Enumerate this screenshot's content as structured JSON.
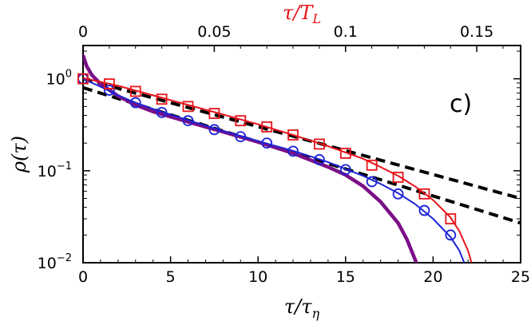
{
  "chart_data": {
    "type": "line",
    "panel_label": "c)",
    "xlabel": "τ/τη",
    "ylabel": "ρ(τ)",
    "top_xlabel": "τ/T_L",
    "xlim": [
      0,
      25
    ],
    "ylim": [
      0.01,
      2.3
    ],
    "yscale": "log",
    "top_xlim": [
      0,
      0.1667
    ],
    "x_ticks": [
      {
        "value": 0,
        "label": "0"
      },
      {
        "value": 5,
        "label": "5"
      },
      {
        "value": 10,
        "label": "10"
      },
      {
        "value": 15,
        "label": "15"
      },
      {
        "value": 20,
        "label": "20"
      },
      {
        "value": 25,
        "label": "25"
      }
    ],
    "top_x_ticks": [
      {
        "value": 0,
        "label": "0"
      },
      {
        "value": 0.05,
        "label": "0.05"
      },
      {
        "value": 0.1,
        "label": "0.1"
      },
      {
        "value": 0.15,
        "label": "0.15"
      }
    ],
    "y_ticks": [
      {
        "value": 1,
        "mantissa": "10",
        "exponent": "0"
      },
      {
        "value": 0.1,
        "mantissa": "10",
        "exponent": "−1"
      },
      {
        "value": 0.01,
        "mantissa": "10",
        "exponent": "−2"
      }
    ],
    "colors": {
      "red": "#e8141b",
      "blue": "#1c23d6",
      "purple": "#7a0f86",
      "dashed": "#000000",
      "top_axis": "#e8141b"
    },
    "series": [
      {
        "name": "red-squares",
        "kind": "markers",
        "marker": "square",
        "color": "#e8141b",
        "points": [
          [
            0.0,
            1.0
          ],
          [
            1.5,
            0.88
          ],
          [
            3.0,
            0.73
          ],
          [
            4.5,
            0.6
          ],
          [
            6.0,
            0.5
          ],
          [
            7.5,
            0.42
          ],
          [
            9.0,
            0.35
          ],
          [
            10.5,
            0.3
          ],
          [
            12.0,
            0.245
          ],
          [
            13.5,
            0.195
          ],
          [
            15.0,
            0.155
          ],
          [
            16.5,
            0.115
          ],
          [
            18.0,
            0.085
          ],
          [
            19.5,
            0.056
          ],
          [
            21.0,
            0.03
          ]
        ]
      },
      {
        "name": "red-fit",
        "kind": "line",
        "color": "#e8141b",
        "points": [
          [
            0,
            1.02
          ],
          [
            2,
            0.84
          ],
          [
            4,
            0.66
          ],
          [
            6,
            0.52
          ],
          [
            8,
            0.41
          ],
          [
            10,
            0.32
          ],
          [
            12,
            0.245
          ],
          [
            14,
            0.185
          ],
          [
            16,
            0.135
          ],
          [
            17,
            0.11
          ],
          [
            18,
            0.088
          ],
          [
            19,
            0.067
          ],
          [
            20,
            0.048
          ],
          [
            21,
            0.031
          ],
          [
            21.5,
            0.022
          ],
          [
            22,
            0.0135
          ],
          [
            22.3,
            0.0085
          ]
        ]
      },
      {
        "name": "blue-circles",
        "kind": "markers",
        "marker": "circle",
        "color": "#1c23d6",
        "points": [
          [
            0.0,
            1.0
          ],
          [
            1.5,
            0.75
          ],
          [
            3.0,
            0.55
          ],
          [
            4.5,
            0.43
          ],
          [
            6.0,
            0.35
          ],
          [
            7.5,
            0.28
          ],
          [
            9.0,
            0.235
          ],
          [
            10.5,
            0.2
          ],
          [
            12.0,
            0.163
          ],
          [
            13.5,
            0.132
          ],
          [
            15.0,
            0.103
          ],
          [
            16.5,
            0.076
          ],
          [
            18.0,
            0.056
          ],
          [
            19.5,
            0.037
          ],
          [
            21.0,
            0.02
          ]
        ]
      },
      {
        "name": "blue-fit",
        "kind": "line",
        "color": "#1c23d6",
        "points": [
          [
            0,
            1.0
          ],
          [
            1,
            0.82
          ],
          [
            2,
            0.66
          ],
          [
            3,
            0.55
          ],
          [
            4,
            0.47
          ],
          [
            6,
            0.355
          ],
          [
            8,
            0.27
          ],
          [
            10,
            0.21
          ],
          [
            12,
            0.165
          ],
          [
            14,
            0.124
          ],
          [
            16,
            0.088
          ],
          [
            17,
            0.072
          ],
          [
            18,
            0.057
          ],
          [
            19,
            0.043
          ],
          [
            20,
            0.03
          ],
          [
            21,
            0.019
          ],
          [
            21.5,
            0.0135
          ],
          [
            21.9,
            0.0088
          ]
        ]
      },
      {
        "name": "purple-curve",
        "kind": "line",
        "color": "#7a0f86",
        "points": [
          [
            0,
            1.8
          ],
          [
            0.2,
            1.38
          ],
          [
            0.5,
            1.1
          ],
          [
            1,
            0.88
          ],
          [
            2,
            0.65
          ],
          [
            3,
            0.52
          ],
          [
            4,
            0.44
          ],
          [
            6,
            0.34
          ],
          [
            8,
            0.265
          ],
          [
            10,
            0.205
          ],
          [
            12,
            0.155
          ],
          [
            14,
            0.11
          ],
          [
            15,
            0.09
          ],
          [
            16,
            0.068
          ],
          [
            17,
            0.046
          ],
          [
            18,
            0.027
          ],
          [
            18.5,
            0.018
          ],
          [
            19,
            0.0105
          ],
          [
            19.15,
            0.0085
          ]
        ]
      },
      {
        "name": "dashed-upper",
        "kind": "dashed",
        "color": "#000000",
        "points": [
          [
            0,
            1.0
          ],
          [
            25,
            0.05
          ]
        ]
      },
      {
        "name": "dashed-lower",
        "kind": "dashed",
        "color": "#000000",
        "points": [
          [
            0,
            0.8
          ],
          [
            25,
            0.027
          ]
        ]
      }
    ]
  }
}
